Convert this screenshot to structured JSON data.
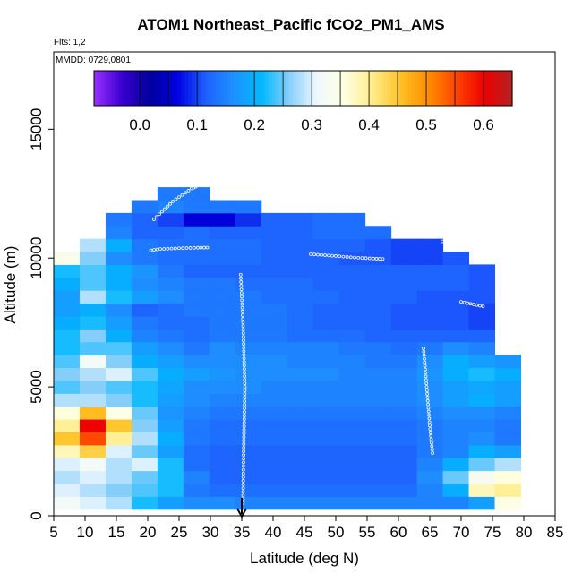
{
  "chart_data": {
    "type": "heatmap",
    "title": "ATOM1 Northeast_Pacific fCO2_PM1_AMS",
    "subtitle_flights": "Flts: 1,2",
    "subtitle_dates": "MMDD: 0729,0801",
    "xlabel": "Latitude (deg N)",
    "ylabel": "Altitude (m)",
    "xlim": [
      5,
      85
    ],
    "ylim": [
      0,
      18000
    ],
    "x_ticks": [
      5,
      10,
      15,
      20,
      25,
      30,
      35,
      40,
      45,
      50,
      55,
      60,
      65,
      70,
      75,
      80,
      85
    ],
    "y_ticks": [
      0,
      5000,
      10000,
      15000
    ],
    "x_tick_labels": [
      "5",
      "10",
      "15",
      "20",
      "25",
      "30",
      "35",
      "40",
      "45",
      "50",
      "55",
      "60",
      "65",
      "70",
      "75",
      "80",
      "85"
    ],
    "y_tick_labels": [
      "0",
      "5000",
      "10000",
      "15000"
    ],
    "colorbar": {
      "range": [
        -0.08,
        0.65
      ],
      "ticks": [
        0.0,
        0.1,
        0.2,
        0.3,
        0.4,
        0.5,
        0.6
      ],
      "tick_labels": [
        "0.0",
        "0.1",
        "0.2",
        "0.3",
        "0.4",
        "0.5",
        "0.6"
      ],
      "colors": [
        "#9b30ff",
        "#3a00d0",
        "#00009c",
        "#0000e0",
        "#1e60ff",
        "#1e90ff",
        "#00b8ff",
        "#87cefa",
        "#f0f8ff",
        "#ffffe0",
        "#ffec8b",
        "#ffc125",
        "#ff8c00",
        "#ff4500",
        "#ee0000",
        "#b22222"
      ]
    },
    "marker": {
      "x": 35,
      "label": "arrow"
    },
    "altitude_bins": [
      500,
      1000,
      1500,
      2000,
      2500,
      3000,
      3500,
      4000,
      4500,
      5000,
      5500,
      6000,
      6500,
      7000,
      7500,
      8000,
      8500,
      9000,
      9500,
      10000,
      10500,
      11000,
      11500,
      12000,
      12500
    ],
    "grid_values": [
      [
        0.32,
        0.3,
        0.28,
        0.22,
        0.18,
        0.16,
        0.16,
        0.15,
        0.15,
        0.15,
        0.15,
        0.15,
        0.15,
        0.15,
        0.15,
        0.15,
        0.18,
        0.35
      ],
      [
        0.3,
        0.28,
        0.26,
        0.24,
        0.22,
        0.14,
        0.13,
        0.13,
        0.13,
        0.13,
        0.13,
        0.13,
        0.13,
        0.13,
        0.15,
        0.2,
        0.38,
        0.4
      ],
      [
        0.28,
        0.3,
        0.28,
        0.25,
        0.22,
        0.15,
        0.12,
        0.12,
        0.12,
        0.12,
        0.12,
        0.12,
        0.12,
        0.12,
        0.16,
        0.25,
        0.33,
        0.36
      ],
      [
        0.3,
        0.32,
        0.28,
        0.3,
        0.22,
        0.13,
        0.12,
        0.12,
        0.12,
        0.12,
        0.12,
        0.12,
        0.12,
        0.12,
        0.15,
        0.2,
        0.25,
        0.28
      ],
      [
        0.38,
        0.44,
        0.3,
        0.25,
        0.18,
        0.13,
        0.12,
        0.12,
        0.12,
        0.12,
        0.12,
        0.12,
        0.12,
        0.12,
        0.14,
        0.15,
        0.2,
        0.18
      ],
      [
        0.45,
        0.55,
        0.4,
        0.28,
        0.2,
        0.14,
        0.13,
        0.13,
        0.13,
        0.13,
        0.13,
        0.13,
        0.13,
        0.13,
        0.14,
        0.15,
        0.16,
        0.14
      ],
      [
        0.4,
        0.6,
        0.45,
        0.26,
        0.18,
        0.14,
        0.13,
        0.13,
        0.13,
        0.13,
        0.13,
        0.13,
        0.13,
        0.13,
        0.14,
        0.15,
        0.15,
        0.14
      ],
      [
        0.36,
        0.46,
        0.35,
        0.25,
        0.17,
        0.15,
        0.14,
        0.14,
        0.14,
        0.14,
        0.14,
        0.14,
        0.14,
        0.14,
        0.15,
        0.16,
        0.16,
        0.15
      ],
      [
        0.28,
        0.28,
        0.26,
        0.22,
        0.18,
        0.16,
        0.15,
        0.15,
        0.15,
        0.15,
        0.15,
        0.15,
        0.15,
        0.15,
        0.16,
        0.18,
        0.2,
        0.18
      ],
      [
        0.24,
        0.26,
        0.24,
        0.22,
        0.19,
        0.16,
        0.16,
        0.16,
        0.15,
        0.15,
        0.15,
        0.15,
        0.15,
        0.15,
        0.16,
        0.18,
        0.19,
        0.18
      ],
      [
        0.26,
        0.28,
        0.3,
        0.24,
        0.2,
        0.18,
        0.17,
        0.16,
        0.16,
        0.16,
        0.16,
        0.15,
        0.15,
        0.15,
        0.17,
        0.2,
        0.22,
        0.2
      ],
      [
        0.24,
        0.32,
        0.26,
        0.2,
        0.18,
        0.16,
        0.16,
        0.16,
        0.16,
        0.15,
        0.15,
        0.15,
        0.14,
        0.14,
        0.16,
        0.2,
        0.18,
        0.17
      ],
      [
        0.22,
        0.24,
        0.24,
        0.18,
        0.16,
        0.14,
        0.16,
        0.15,
        0.15,
        0.15,
        0.15,
        0.14,
        0.14,
        0.13,
        0.14,
        0.16,
        0.15,
        null
      ],
      [
        0.22,
        0.26,
        0.2,
        0.15,
        0.14,
        0.13,
        0.14,
        0.14,
        0.14,
        0.13,
        0.13,
        0.13,
        0.12,
        0.12,
        0.12,
        0.12,
        0.12,
        null
      ],
      [
        0.2,
        0.22,
        0.18,
        0.14,
        0.13,
        0.13,
        0.14,
        0.14,
        0.14,
        0.13,
        0.12,
        0.12,
        0.12,
        0.11,
        0.11,
        0.11,
        0.1,
        null
      ],
      [
        0.18,
        0.2,
        0.16,
        0.12,
        0.13,
        0.14,
        0.14,
        0.14,
        0.14,
        0.13,
        0.12,
        0.12,
        0.12,
        0.11,
        0.11,
        0.11,
        0.1,
        null
      ],
      [
        0.18,
        0.28,
        0.22,
        0.18,
        0.16,
        0.14,
        0.14,
        0.14,
        0.13,
        0.13,
        0.13,
        0.12,
        0.12,
        0.12,
        0.11,
        0.11,
        0.11,
        null
      ],
      [
        0.2,
        0.24,
        0.2,
        0.16,
        0.15,
        0.14,
        0.14,
        0.13,
        0.13,
        0.13,
        0.12,
        0.12,
        0.12,
        0.12,
        0.12,
        0.12,
        0.11,
        null
      ],
      [
        0.22,
        0.24,
        0.2,
        0.17,
        0.14,
        0.12,
        0.12,
        0.12,
        0.12,
        0.12,
        0.12,
        0.12,
        0.12,
        0.12,
        0.12,
        0.12,
        0.11,
        null
      ],
      [
        0.34,
        0.26,
        0.16,
        0.14,
        0.13,
        0.13,
        0.13,
        0.13,
        0.12,
        0.12,
        0.12,
        0.11,
        0.11,
        0.1,
        0.1,
        0.11,
        null,
        null
      ],
      [
        null,
        0.28,
        0.2,
        0.14,
        0.13,
        0.13,
        0.13,
        0.13,
        0.12,
        0.12,
        0.12,
        0.12,
        0.11,
        0.1,
        0.1,
        null,
        null,
        null
      ],
      [
        null,
        null,
        0.15,
        0.12,
        0.12,
        0.13,
        0.12,
        0.12,
        0.12,
        0.12,
        0.13,
        0.13,
        0.13,
        null,
        null,
        null,
        null,
        null
      ],
      [
        null,
        null,
        0.14,
        0.12,
        0.1,
        0.06,
        0.06,
        0.09,
        0.12,
        0.12,
        0.13,
        0.13,
        null,
        null,
        null,
        null,
        null,
        null
      ],
      [
        null,
        null,
        null,
        0.14,
        0.15,
        0.14,
        0.14,
        0.14,
        null,
        null,
        null,
        null,
        null,
        null,
        null,
        null,
        null,
        null
      ],
      [
        null,
        null,
        null,
        null,
        0.14,
        0.14,
        null,
        null,
        null,
        null,
        null,
        null,
        null,
        null,
        null,
        null,
        null,
        null
      ]
    ],
    "flight_tracks": [
      {
        "points": [
          [
            20.5,
            10300
          ],
          [
            22,
            10350
          ],
          [
            25,
            10380
          ],
          [
            28,
            10400
          ],
          [
            30,
            10410
          ]
        ]
      },
      {
        "points": [
          [
            46,
            10150
          ],
          [
            50,
            10080
          ],
          [
            53,
            10020
          ],
          [
            56,
            9980
          ],
          [
            58,
            9960
          ]
        ]
      },
      {
        "points": [
          [
            67,
            10650
          ],
          [
            70,
            10550
          ],
          [
            72,
            10480
          ],
          [
            73,
            10430
          ]
        ]
      },
      {
        "points": [
          [
            74,
            9950
          ],
          [
            76,
            9850
          ],
          [
            78,
            9730
          ]
        ]
      },
      {
        "points": [
          [
            70,
            8300
          ],
          [
            72,
            8200
          ],
          [
            74,
            8100
          ]
        ]
      },
      {
        "points": [
          [
            35.2,
            500
          ],
          [
            35.3,
            2500
          ],
          [
            35.5,
            5000
          ],
          [
            35.2,
            7500
          ],
          [
            34.8,
            9500
          ]
        ]
      },
      {
        "points": [
          [
            64,
            6500
          ],
          [
            64.5,
            5000
          ],
          [
            65,
            3500
          ],
          [
            65.5,
            2300
          ]
        ]
      },
      {
        "points": [
          [
            21,
            11500
          ],
          [
            24,
            12200
          ],
          [
            27,
            12700
          ],
          [
            28,
            12800
          ]
        ]
      }
    ]
  }
}
